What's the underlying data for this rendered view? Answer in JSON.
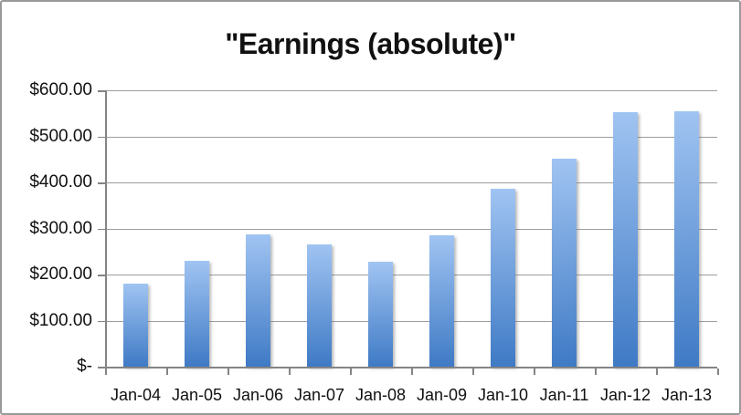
{
  "title": "\"Earnings (absolute)\"",
  "chart_data": {
    "type": "bar",
    "title": "\"Earnings (absolute)\"",
    "categories": [
      "Jan-04",
      "Jan-05",
      "Jan-06",
      "Jan-07",
      "Jan-08",
      "Jan-09",
      "Jan-10",
      "Jan-11",
      "Jan-12",
      "Jan-13"
    ],
    "values": [
      180,
      229,
      287,
      266,
      228,
      285,
      387,
      452,
      552,
      554
    ],
    "xlabel": "",
    "ylabel": "",
    "ylim": [
      0,
      600
    ],
    "ytick_step": 100,
    "ytick_labels": [
      "$-",
      "$100.00",
      "$200.00",
      "$300.00",
      "$400.00",
      "$500.00",
      "$600.00"
    ],
    "grid": true,
    "legend": false
  },
  "colors": {
    "bar_gradient_top": "#a0c4f2",
    "bar_gradient_bottom": "#3f7ac5",
    "gridline": "#9e9e9e",
    "axis": "#848484",
    "text": "#111111",
    "frame_border": "#999999",
    "background": "#ffffff"
  }
}
